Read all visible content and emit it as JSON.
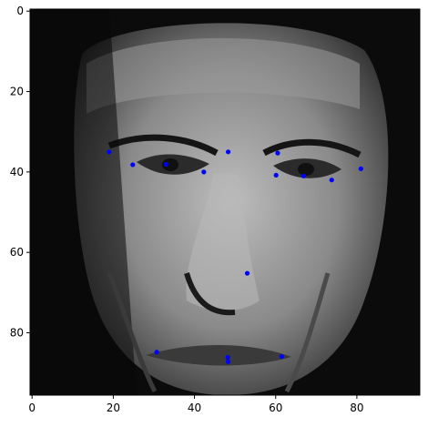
{
  "chart_data": {
    "type": "scatter",
    "title": "",
    "xlabel": "",
    "ylabel": "",
    "xlim": [
      -0.5,
      95.5
    ],
    "ylim": [
      95.5,
      -0.5
    ],
    "y_axis_inverted": true,
    "xticks": [
      "0",
      "20",
      "40",
      "60",
      "80"
    ],
    "yticks": [
      "0",
      "20",
      "40",
      "60",
      "80"
    ],
    "grid": false,
    "legend": "none",
    "background": "grayscale 96x96 face image",
    "colors": {
      "marker": "#0000ff",
      "axes": "#000000"
    },
    "series": [
      {
        "marker": "dot",
        "x": [
          19.0,
          24.8,
          33.0,
          42.3,
          48.3,
          60.5,
          60.1,
          66.9,
          73.8,
          81.0,
          53.0,
          30.7,
          48.2,
          48.3,
          61.5
        ],
        "y": [
          35.0,
          38.2,
          38.1,
          40.0,
          35.0,
          35.3,
          40.8,
          41.0,
          42.0,
          39.2,
          65.2,
          84.8,
          86.1,
          87.2,
          85.9
        ]
      }
    ]
  }
}
